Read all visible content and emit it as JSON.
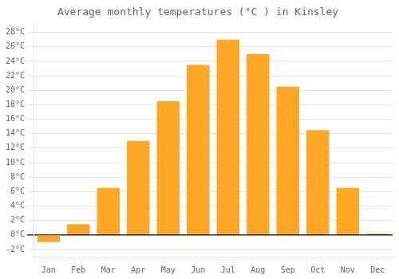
{
  "chart_data": {
    "type": "bar",
    "title": "Average monthly temperatures (°C ) in Kinsley",
    "categories": [
      "Jan",
      "Feb",
      "Mar",
      "Apr",
      "May",
      "Jun",
      "Jul",
      "Aug",
      "Sep",
      "Oct",
      "Nov",
      "Dec"
    ],
    "values": [
      -1.0,
      1.5,
      6.5,
      13.0,
      18.5,
      23.5,
      27.0,
      25.0,
      20.5,
      14.5,
      6.5,
      0.2
    ],
    "color": "#FFA726",
    "ylim": [
      -3,
      29
    ],
    "yticks": [
      {
        "value": -2,
        "label": "-2°C"
      },
      {
        "value": 0,
        "label": "0°C"
      },
      {
        "value": 2,
        "label": "2°C"
      },
      {
        "value": 4,
        "label": "4°C"
      },
      {
        "value": 6,
        "label": "6°C"
      },
      {
        "value": 8,
        "label": "8°C"
      },
      {
        "value": 10,
        "label": "10°C"
      },
      {
        "value": 12,
        "label": "12°C"
      },
      {
        "value": 14,
        "label": "14°C"
      },
      {
        "value": 16,
        "label": "16°C"
      },
      {
        "value": 18,
        "label": "18°C"
      },
      {
        "value": 20,
        "label": "20°C"
      },
      {
        "value": 22,
        "label": "22°C"
      },
      {
        "value": 24,
        "label": "24°C"
      },
      {
        "value": 26,
        "label": "26°C"
      },
      {
        "value": 28,
        "label": "28°C"
      }
    ],
    "grid": true
  }
}
